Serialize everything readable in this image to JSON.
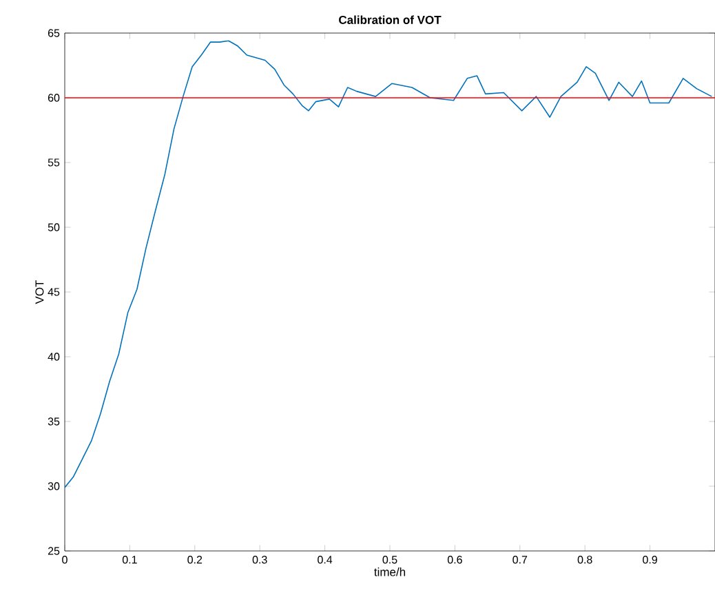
{
  "chart_data": {
    "type": "line",
    "title": "**Calibration of VOT**",
    "xlabel": "time/h",
    "ylabel": "VOT",
    "xlim": [
      0,
      1
    ],
    "ylim": [
      25,
      65
    ],
    "xticks": [
      0,
      0.1,
      0.2,
      0.3,
      0.4,
      0.5,
      0.6,
      0.7,
      0.8,
      0.9
    ],
    "yticks": [
      25,
      30,
      35,
      40,
      45,
      50,
      55,
      60,
      65
    ],
    "grid": false,
    "marker": "none",
    "line_style": "solid",
    "ref_lines": [
      {
        "axis": "y",
        "value": 60,
        "color": "#ff0000"
      }
    ],
    "series": [
      {
        "color": "#0072bd",
        "x": [
          0,
          0.013,
          0.027,
          0.041,
          0.055,
          0.069,
          0.083,
          0.097,
          0.111,
          0.125,
          0.139,
          0.154,
          0.168,
          0.182,
          0.196,
          0.21,
          0.224,
          0.238,
          0.252,
          0.266,
          0.28,
          0.294,
          0.308,
          0.323,
          0.337,
          0.351,
          0.365,
          0.375,
          0.386,
          0.407,
          0.421,
          0.435,
          0.449,
          0.478,
          0.503,
          0.534,
          0.562,
          0.598,
          0.619,
          0.634,
          0.647,
          0.675,
          0.703,
          0.725,
          0.746,
          0.763,
          0.788,
          0.802,
          0.816,
          0.837,
          0.852,
          0.873,
          0.887,
          0.9,
          0.929,
          0.951,
          0.972,
          0.995
        ],
        "values": [
          29.9,
          30.7,
          32.1,
          33.5,
          35.6,
          38.1,
          40.2,
          43.4,
          45.2,
          48.4,
          51.2,
          54.1,
          57.6,
          60.1,
          62.4,
          63.3,
          64.3,
          64.3,
          64.4,
          64.0,
          63.3,
          63.1,
          62.9,
          62.2,
          61.0,
          60.3,
          59.4,
          59.0,
          59.7,
          59.9,
          59.3,
          60.8,
          60.5,
          60.1,
          61.1,
          60.8,
          60.0,
          59.8,
          61.5,
          61.7,
          60.3,
          60.4,
          59.0,
          60.1,
          58.5,
          60.1,
          61.2,
          62.4,
          61.9,
          59.8,
          61.2,
          60.1,
          61.3,
          59.6,
          59.6,
          61.5,
          60.7,
          60.1
        ]
      }
    ]
  }
}
